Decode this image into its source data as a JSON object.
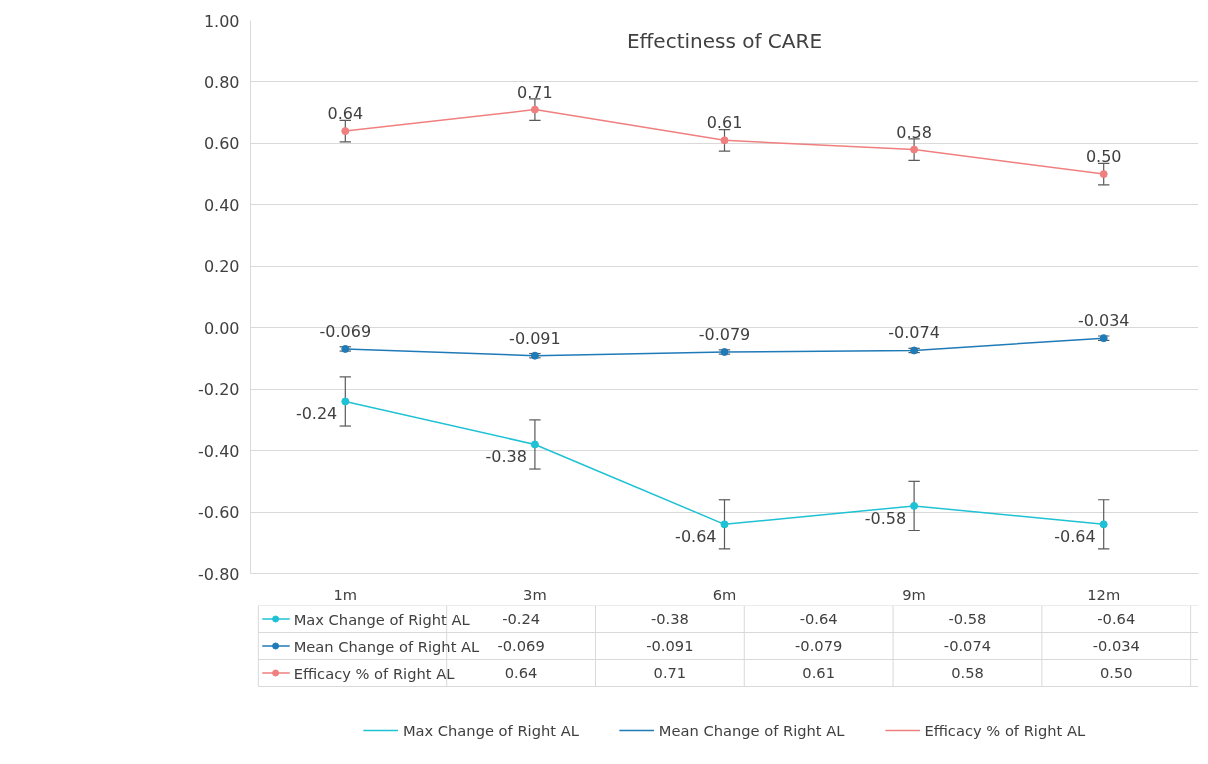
{
  "chart_data": {
    "type": "line",
    "title": "Effectiness of CARE",
    "categories": [
      "1m",
      "3m",
      "6m",
      "9m",
      "12m"
    ],
    "series": [
      {
        "name": "Max Change of Right AL",
        "color": "#1fc1d4",
        "values": [
          -0.24,
          -0.38,
          -0.64,
          -0.58,
          -0.64
        ],
        "errors": [
          0.08,
          0.08,
          0.08,
          0.08,
          0.08
        ],
        "value_labels": [
          "-0.24",
          "-0.38",
          "-0.64",
          "-0.58",
          "-0.64"
        ]
      },
      {
        "name": "Mean Change of Right AL",
        "color": "#1f7ab8",
        "values": [
          -0.069,
          -0.091,
          -0.079,
          -0.074,
          -0.034
        ],
        "errors": [
          0.007,
          0.007,
          0.007,
          0.007,
          0.007
        ],
        "value_labels": [
          "-0.069",
          "-0.091",
          "-0.079",
          "-0.074",
          "-0.034"
        ]
      },
      {
        "name": "Efficacy % of Right AL",
        "color": "#f07f7f",
        "values": [
          0.64,
          0.71,
          0.61,
          0.58,
          0.5
        ],
        "errors": [
          0.035,
          0.035,
          0.035,
          0.035,
          0.035
        ],
        "value_labels": [
          "0.64",
          "0.71",
          "0.61",
          "0.58",
          "0.50"
        ]
      }
    ],
    "ylim": [
      -0.8,
      1.0
    ],
    "yticks": [
      {
        "value": -0.8,
        "label": "-0.80"
      },
      {
        "value": -0.6,
        "label": "-0.60"
      },
      {
        "value": -0.4,
        "label": "-0.40"
      },
      {
        "value": -0.2,
        "label": "-0.20"
      },
      {
        "value": 0,
        "label": "0.00"
      },
      {
        "value": 0.2,
        "label": "0.20"
      },
      {
        "value": 0.4,
        "label": "0.40"
      },
      {
        "value": 0.6,
        "label": "0.60"
      },
      {
        "value": 0.8,
        "label": "0.80"
      },
      {
        "value": 1.0,
        "label": "1.00"
      }
    ],
    "grid": "y",
    "legend": "bottom",
    "marker": "circle",
    "line_style": "solid"
  }
}
